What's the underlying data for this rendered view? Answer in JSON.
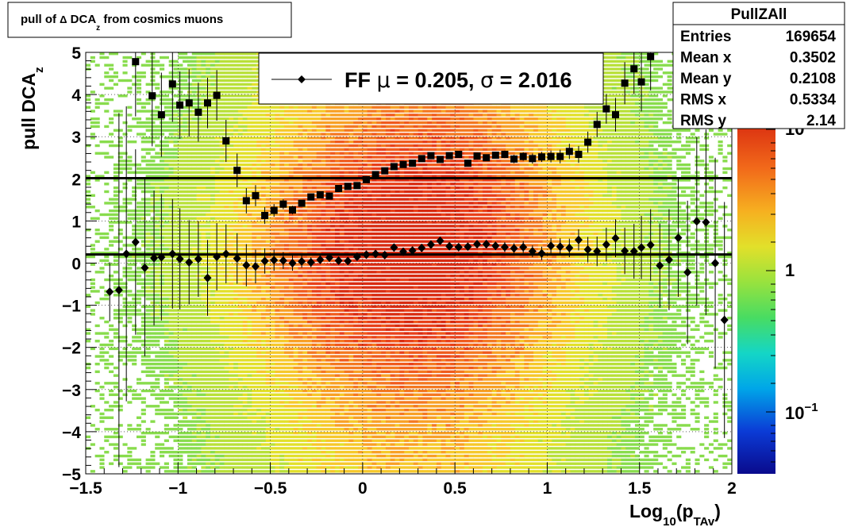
{
  "title_box": {
    "pre": "pull of ",
    "delta": "Δ",
    "main": " DCA",
    "sub": "z",
    "post": " from cosmics muons"
  },
  "stats": {
    "header": "PullZAll",
    "rows": [
      {
        "label": "Entries",
        "value": "169654"
      },
      {
        "label": "Mean x",
        "value": "0.3502"
      },
      {
        "label": "Mean y",
        "value": "0.2108"
      },
      {
        "label": "RMS x",
        "value": "0.5334"
      },
      {
        "label": "RMS y",
        "value": "2.14"
      }
    ]
  },
  "legend": {
    "text_pre": "FF ",
    "mu": "μ",
    "text_mid": " =  0.205, ",
    "sigma": "σ",
    "text_post": " =   2.016"
  },
  "palette": {
    "tick_10_base": "10",
    "tick_10_exp": "",
    "tick_1": "1",
    "tick_01_base": "10",
    "tick_01_exp": "−1"
  },
  "axes": {
    "ylabel": "pull DCA",
    "ylabel_sub": "z",
    "xlabel_pre": "Log",
    "xlabel_sub1": "10",
    "xlabel_mid": "(p",
    "xlabel_sub2": "TAv",
    "xlabel_post": ")"
  },
  "chart_data": {
    "type": "scatter",
    "background": "2D histogram (colz, log z-scale)",
    "xlim": [
      -1.5,
      2.0
    ],
    "ylim": [
      -5,
      5
    ],
    "x_ticks": [
      "−1.5",
      "−1",
      "−0.5",
      "0",
      "0.5",
      "1",
      "1.5",
      "2"
    ],
    "y_ticks": [
      "−5",
      "−4",
      "−3",
      "−2",
      "−1",
      "0",
      "1",
      "2",
      "3",
      "4",
      "5"
    ],
    "grid": true,
    "horizontal_lines": [
      0.205,
      2.016
    ],
    "series": [
      {
        "marker": "square",
        "points": [
          [
            -1.23,
            4.78,
            1.3
          ],
          [
            -1.14,
            3.97,
            1.2
          ],
          [
            -1.09,
            3.52,
            1.0
          ],
          [
            -1.03,
            4.25,
            0.9
          ],
          [
            -0.99,
            3.75,
            0.8
          ],
          [
            -0.94,
            3.8,
            0.8
          ],
          [
            -0.89,
            3.58,
            0.7
          ],
          [
            -0.84,
            3.8,
            0.6
          ],
          [
            -0.79,
            3.98,
            0.6
          ],
          [
            -0.74,
            2.9,
            0.5
          ],
          [
            -0.68,
            2.2,
            0.4
          ],
          [
            -0.63,
            1.48,
            0.3
          ],
          [
            -0.58,
            1.6,
            0.25
          ],
          [
            -0.53,
            1.13,
            0.2
          ],
          [
            -0.48,
            1.25,
            0.15
          ],
          [
            -0.43,
            1.4,
            0.12
          ],
          [
            -0.38,
            1.26,
            0.1
          ],
          [
            -0.33,
            1.42,
            0.08
          ],
          [
            -0.28,
            1.57,
            0.07
          ],
          [
            -0.23,
            1.62,
            0.06
          ],
          [
            -0.18,
            1.59,
            0.05
          ],
          [
            -0.13,
            1.77,
            0.05
          ],
          [
            -0.08,
            1.82,
            0.05
          ],
          [
            -0.03,
            1.84,
            0.05
          ],
          [
            0.02,
            1.98,
            0.05
          ],
          [
            0.07,
            2.1,
            0.05
          ],
          [
            0.12,
            2.19,
            0.05
          ],
          [
            0.17,
            2.29,
            0.05
          ],
          [
            0.22,
            2.34,
            0.05
          ],
          [
            0.27,
            2.37,
            0.05
          ],
          [
            0.32,
            2.48,
            0.05
          ],
          [
            0.37,
            2.55,
            0.05
          ],
          [
            0.42,
            2.46,
            0.05
          ],
          [
            0.47,
            2.55,
            0.06
          ],
          [
            0.52,
            2.58,
            0.06
          ],
          [
            0.57,
            2.37,
            0.07
          ],
          [
            0.62,
            2.54,
            0.07
          ],
          [
            0.67,
            2.5,
            0.08
          ],
          [
            0.72,
            2.56,
            0.08
          ],
          [
            0.77,
            2.58,
            0.09
          ],
          [
            0.82,
            2.47,
            0.1
          ],
          [
            0.87,
            2.53,
            0.1
          ],
          [
            0.92,
            2.48,
            0.12
          ],
          [
            0.97,
            2.52,
            0.12
          ],
          [
            1.02,
            2.53,
            0.14
          ],
          [
            1.07,
            2.53,
            0.16
          ],
          [
            1.12,
            2.65,
            0.18
          ],
          [
            1.17,
            2.58,
            0.2
          ],
          [
            1.22,
            2.87,
            0.25
          ],
          [
            1.27,
            3.29,
            0.3
          ],
          [
            1.32,
            3.66,
            0.35
          ],
          [
            1.37,
            3.52,
            0.4
          ],
          [
            1.42,
            4.27,
            0.5
          ],
          [
            1.47,
            4.61,
            0.6
          ],
          [
            1.51,
            4.3,
            0.7
          ],
          [
            1.56,
            4.9,
            0.8
          ]
        ]
      },
      {
        "marker": "diamond",
        "points": [
          [
            -1.37,
            -0.68,
            0.7
          ],
          [
            -1.32,
            -0.64,
            4.2
          ],
          [
            -1.28,
            0.22,
            3.5
          ],
          [
            -1.23,
            0.5,
            2.2
          ],
          [
            -1.18,
            -0.11,
            2.1
          ],
          [
            -1.13,
            0.12,
            1.6
          ],
          [
            -1.09,
            0.14,
            1.5
          ],
          [
            -1.03,
            0.22,
            1.3
          ],
          [
            -0.99,
            0.1,
            1.2
          ],
          [
            -0.94,
            0.02,
            1.0
          ],
          [
            -0.89,
            0.1,
            0.9
          ],
          [
            -0.84,
            -0.35,
            0.9
          ],
          [
            -0.79,
            0.15,
            0.8
          ],
          [
            -0.74,
            0.22,
            0.7
          ],
          [
            -0.68,
            0.11,
            0.6
          ],
          [
            -0.63,
            -0.05,
            0.5
          ],
          [
            -0.58,
            -0.08,
            0.4
          ],
          [
            -0.53,
            0.05,
            0.3
          ],
          [
            -0.48,
            0.07,
            0.25
          ],
          [
            -0.43,
            0.06,
            0.2
          ],
          [
            -0.38,
            0.0,
            0.18
          ],
          [
            -0.33,
            0.04,
            0.15
          ],
          [
            -0.28,
            0.02,
            0.12
          ],
          [
            -0.23,
            0.08,
            0.1
          ],
          [
            -0.18,
            0.13,
            0.1
          ],
          [
            -0.13,
            0.06,
            0.08
          ],
          [
            -0.08,
            0.05,
            0.08
          ],
          [
            -0.03,
            0.15,
            0.07
          ],
          [
            0.02,
            0.2,
            0.07
          ],
          [
            0.07,
            0.22,
            0.07
          ],
          [
            0.12,
            0.19,
            0.07
          ],
          [
            0.17,
            0.37,
            0.07
          ],
          [
            0.22,
            0.27,
            0.07
          ],
          [
            0.27,
            0.3,
            0.07
          ],
          [
            0.32,
            0.36,
            0.07
          ],
          [
            0.37,
            0.44,
            0.07
          ],
          [
            0.42,
            0.53,
            0.08
          ],
          [
            0.47,
            0.4,
            0.08
          ],
          [
            0.52,
            0.38,
            0.08
          ],
          [
            0.57,
            0.39,
            0.09
          ],
          [
            0.62,
            0.45,
            0.09
          ],
          [
            0.67,
            0.45,
            0.1
          ],
          [
            0.72,
            0.41,
            0.1
          ],
          [
            0.77,
            0.38,
            0.12
          ],
          [
            0.82,
            0.35,
            0.12
          ],
          [
            0.87,
            0.38,
            0.14
          ],
          [
            0.92,
            0.28,
            0.14
          ],
          [
            0.97,
            0.23,
            0.16
          ],
          [
            1.02,
            0.41,
            0.18
          ],
          [
            1.07,
            0.39,
            0.2
          ],
          [
            1.12,
            0.36,
            0.22
          ],
          [
            1.17,
            0.55,
            0.25
          ],
          [
            1.22,
            0.32,
            0.3
          ],
          [
            1.27,
            0.28,
            0.35
          ],
          [
            1.32,
            0.44,
            0.4
          ],
          [
            1.37,
            0.59,
            0.45
          ],
          [
            1.42,
            0.29,
            0.55
          ],
          [
            1.47,
            0.28,
            0.65
          ],
          [
            1.51,
            0.37,
            0.75
          ],
          [
            1.56,
            0.43,
            0.85
          ],
          [
            1.61,
            -0.06,
            1.0
          ],
          [
            1.66,
            0.08,
            1.2
          ],
          [
            1.71,
            0.6,
            1.4
          ],
          [
            1.76,
            -0.22,
            1.7
          ],
          [
            1.81,
            0.99,
            2.0
          ],
          [
            1.86,
            0.97,
            2.2
          ],
          [
            1.91,
            0.0,
            2.5
          ],
          [
            1.96,
            -1.35,
            2.8
          ]
        ]
      }
    ],
    "palette_scale": {
      "type": "log",
      "ticks": [
        "10",
        "1",
        "10^-1"
      ]
    }
  }
}
